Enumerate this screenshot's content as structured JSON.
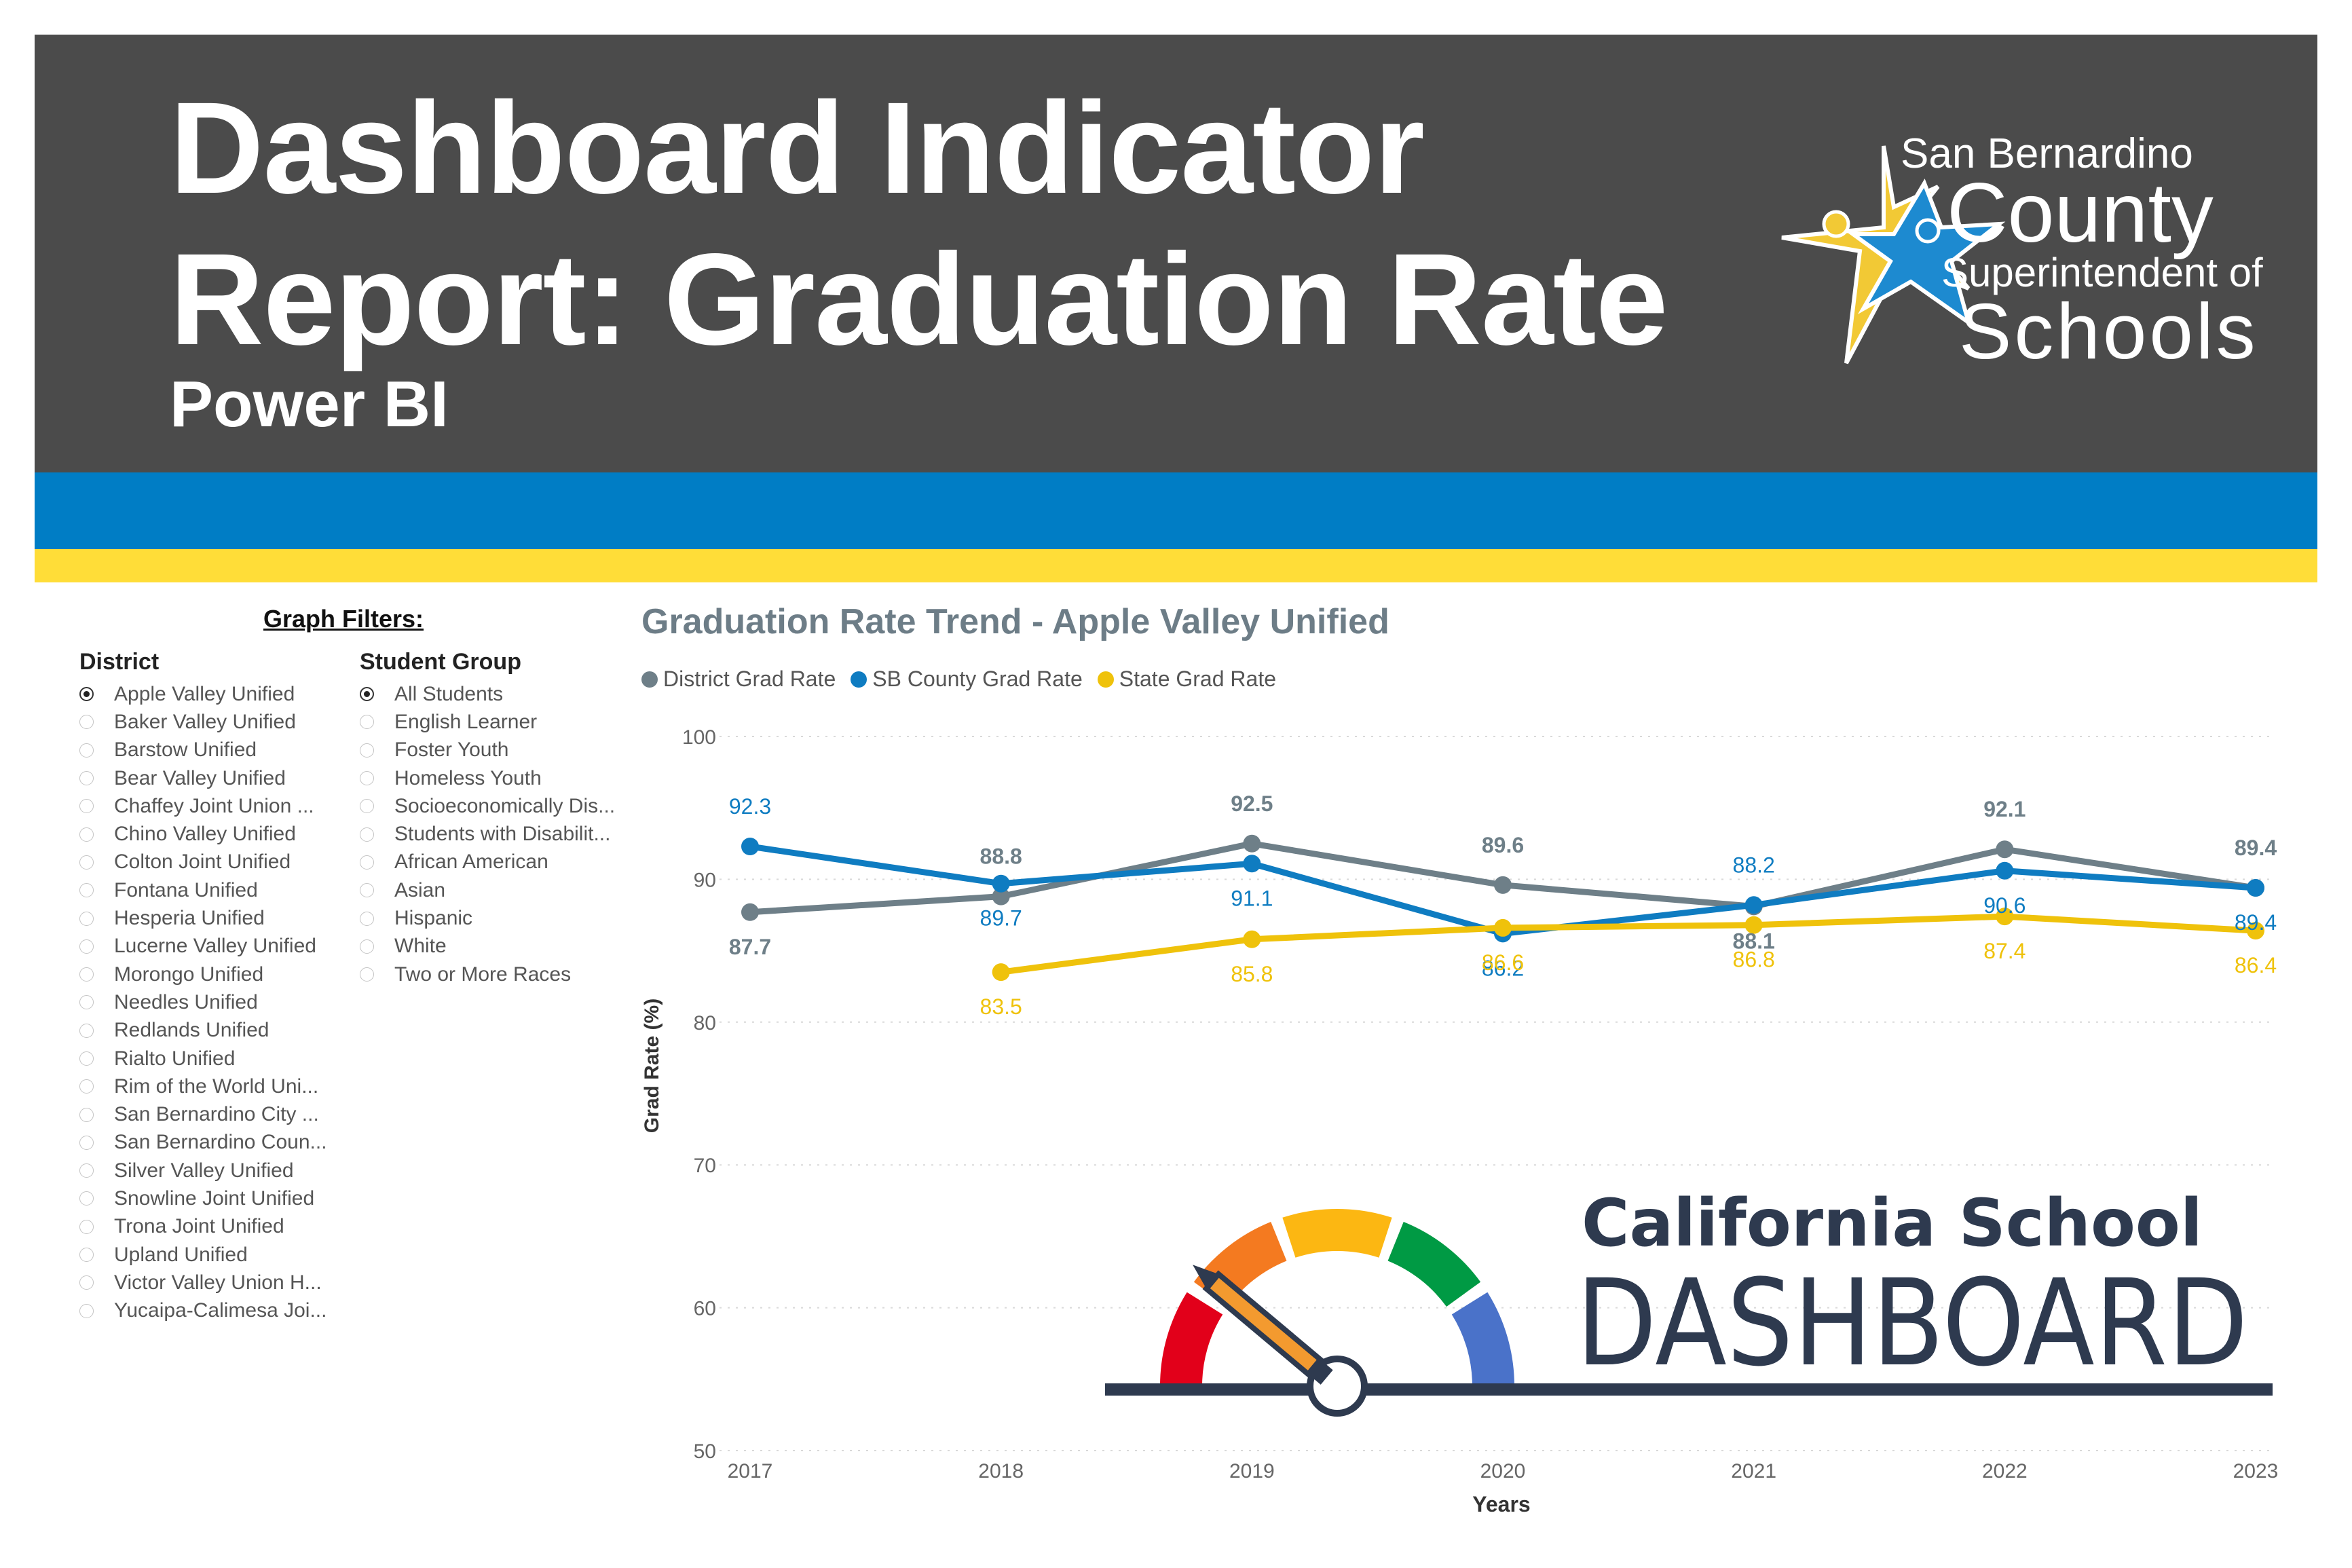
{
  "header": {
    "title_line1": "Dashboard Indicator",
    "title_line2": "Report: Graduation Rate",
    "subtitle": "Power BI",
    "logo": {
      "line1": "San Bernardino",
      "line2": "County",
      "line3": "Superintendent of",
      "line4": "Schools",
      "icon": "star-icon"
    }
  },
  "colors": {
    "banner": "#4b4b4b",
    "blue_stripe": "#007dc5",
    "yellow_stripe": "#ffdd38",
    "district": "#6e7f88",
    "county": "#0f7cc1",
    "state": "#efc20b"
  },
  "filters": {
    "heading": "Graph Filters:",
    "district": {
      "title": "District",
      "selected": "Apple Valley Unified",
      "items": [
        "Apple Valley Unified",
        "Baker Valley Unified",
        "Barstow Unified",
        "Bear Valley Unified",
        "Chaffey Joint Union ...",
        "Chino Valley Unified",
        "Colton Joint Unified",
        "Fontana Unified",
        "Hesperia Unified",
        "Lucerne Valley Unified",
        "Morongo Unified",
        "Needles Unified",
        "Redlands Unified",
        "Rialto Unified",
        "Rim of the World Uni...",
        "San Bernardino City ...",
        "San Bernardino Coun...",
        "Silver Valley Unified",
        "Snowline Joint Unified",
        "Trona Joint Unified",
        "Upland Unified",
        "Victor Valley Union H...",
        "Yucaipa-Calimesa Joi..."
      ]
    },
    "student_group": {
      "title": "Student Group",
      "selected": "All Students",
      "items": [
        "All Students",
        "English Learner",
        "Foster Youth",
        "Homeless Youth",
        "Socioeconomically Dis...",
        "Students with Disabilit...",
        "African American",
        "Asian",
        "Hispanic",
        "White",
        "Two or More Races"
      ]
    }
  },
  "chart_data": {
    "type": "line",
    "title": "Graduation Rate Trend - Apple Valley Unified",
    "xlabel": "Years",
    "ylabel": "Grad Rate (%)",
    "x": [
      "2017",
      "2018",
      "2019",
      "2020",
      "2021",
      "2022",
      "2023"
    ],
    "ylim": [
      50,
      100
    ],
    "yticks": [
      50,
      60,
      70,
      80,
      90,
      100
    ],
    "grid": true,
    "legend_position": "top-left",
    "series": [
      {
        "name": "District Grad Rate",
        "color": "#6e7f88",
        "values": [
          87.7,
          88.8,
          92.5,
          89.6,
          88.1,
          92.1,
          89.4
        ]
      },
      {
        "name": "SB County Grad Rate",
        "color": "#0f7cc1",
        "values": [
          92.3,
          89.7,
          91.1,
          86.2,
          88.2,
          90.6,
          89.4
        ]
      },
      {
        "name": "State Grad Rate",
        "color": "#efc20b",
        "values": [
          null,
          83.5,
          85.8,
          86.6,
          86.8,
          87.4,
          86.4
        ]
      }
    ]
  },
  "dashboard_logo": {
    "line1": "California School",
    "line2": "DASHBOARD",
    "gauge_colors": [
      "#e2001a",
      "#f47a20",
      "#fcb712",
      "#009a44",
      "#4a72c9"
    ],
    "pencil_color": "#f39a2f",
    "text_color": "#2e3a4f"
  }
}
